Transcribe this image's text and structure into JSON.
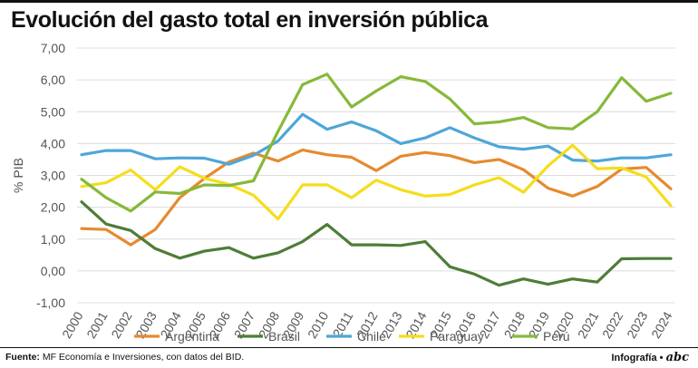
{
  "title": "Evolución del gasto total en inversión pública",
  "source_label": "Fuente:",
  "source_text": "MF Economía e Inversiones, con datos del BID.",
  "credit_text": "Infografía •",
  "credit_logo": "abc",
  "colors": {
    "Argentina": "#e58a2e",
    "Brasil": "#4e7d37",
    "Chile": "#4ea6d8",
    "Paraguay": "#f5dd1c",
    "Perú": "#86b93a",
    "grid": "#dcdcdc",
    "text": "#555555"
  },
  "chart_data": {
    "type": "line",
    "title": "Evolución del gasto total en inversión pública",
    "xlabel": "",
    "ylabel": "% PIB",
    "ylim": [
      -1,
      7
    ],
    "yticks": [
      "-1,00",
      "0,00",
      "1,00",
      "2,00",
      "3,00",
      "4,00",
      "5,00",
      "6,00",
      "7,00"
    ],
    "grid": true,
    "legend": "bottom",
    "categories": [
      "2000",
      "2001",
      "2002",
      "2003",
      "2004",
      "2005",
      "2006",
      "2007",
      "2008",
      "2009",
      "2010",
      "2011",
      "2012",
      "2013",
      "2014",
      "2015",
      "2016",
      "2017",
      "2018",
      "2019",
      "2020",
      "2021",
      "2022",
      "2023",
      "2024"
    ],
    "series": [
      {
        "name": "Argentina",
        "values": [
          1.33,
          1.3,
          0.82,
          1.3,
          2.3,
          2.9,
          3.42,
          3.7,
          3.45,
          3.8,
          3.65,
          3.57,
          3.15,
          3.6,
          3.72,
          3.62,
          3.4,
          3.5,
          3.18,
          2.6,
          2.35,
          2.65,
          3.2,
          3.25,
          2.58
        ]
      },
      {
        "name": "Brasil",
        "values": [
          2.17,
          1.47,
          1.27,
          0.7,
          0.4,
          0.62,
          0.73,
          0.4,
          0.57,
          0.92,
          1.46,
          0.82,
          0.82,
          0.8,
          0.92,
          0.13,
          -0.1,
          -0.45,
          -0.25,
          -0.42,
          -0.25,
          -0.35,
          0.38,
          0.39,
          0.39
        ]
      },
      {
        "name": "Chile",
        "values": [
          3.65,
          3.78,
          3.78,
          3.52,
          3.55,
          3.54,
          3.35,
          3.63,
          4.08,
          4.92,
          4.45,
          4.68,
          4.4,
          4.0,
          4.18,
          4.5,
          4.18,
          3.9,
          3.82,
          3.92,
          3.48,
          3.45,
          3.55,
          3.55,
          3.65
        ]
      },
      {
        "name": "Paraguay",
        "values": [
          2.65,
          2.77,
          3.17,
          2.55,
          3.27,
          2.91,
          2.72,
          2.38,
          1.63,
          2.7,
          2.7,
          2.3,
          2.85,
          2.55,
          2.35,
          2.4,
          2.7,
          2.93,
          2.47,
          3.3,
          3.95,
          3.21,
          3.23,
          2.95,
          2.05
        ]
      },
      {
        "name": "Perú",
        "values": [
          2.88,
          2.3,
          1.88,
          2.48,
          2.43,
          2.7,
          2.68,
          2.83,
          4.38,
          5.85,
          6.18,
          5.15,
          5.65,
          6.1,
          5.95,
          5.4,
          4.62,
          4.68,
          4.82,
          4.5,
          4.46,
          5.0,
          6.07,
          5.33,
          5.58
        ]
      }
    ]
  }
}
